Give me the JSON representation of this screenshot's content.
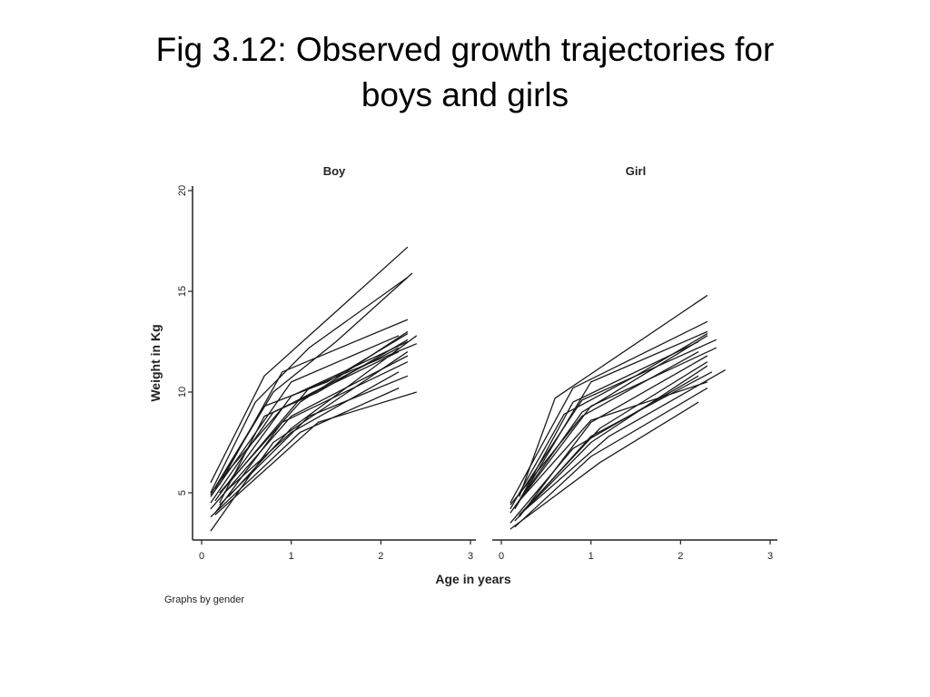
{
  "slide": {
    "title_line1": "Fig 3.12: Observed growth trajectories for",
    "title_line2": "boys and girls"
  },
  "footnote": "Graphs by gender",
  "colors": {
    "line": "#1a1a1a",
    "axis": "#222222",
    "background": "#ffffff"
  },
  "chart_data": {
    "type": "line",
    "xlabel": "Age in years",
    "ylabel": "Weight in Kg",
    "xlim": [
      0,
      3
    ],
    "ylim": [
      3,
      20
    ],
    "x_ticks": [
      0,
      1,
      2,
      3
    ],
    "y_ticks": [
      5,
      10,
      15,
      20
    ],
    "grid": false,
    "panels": [
      {
        "title": "Boy",
        "series": [
          {
            "x": [
              0.1,
              0.7,
              1.3,
              2.3
            ],
            "y": [
              5.5,
              10.8,
              13.2,
              17.2
            ]
          },
          {
            "x": [
              0.15,
              0.8,
              1.5,
              2.35
            ],
            "y": [
              5.2,
              10.0,
              12.5,
              15.9
            ]
          },
          {
            "x": [
              0.1,
              0.6,
              1.2,
              2.3
            ],
            "y": [
              5.0,
              9.5,
              12.2,
              15.7
            ]
          },
          {
            "x": [
              0.2,
              0.9,
              2.3
            ],
            "y": [
              5.4,
              11.0,
              13.6
            ]
          },
          {
            "x": [
              0.1,
              1.0,
              2.2
            ],
            "y": [
              4.8,
              10.5,
              12.8
            ]
          },
          {
            "x": [
              0.15,
              1.0,
              2.3
            ],
            "y": [
              4.6,
              9.8,
              12.5
            ]
          },
          {
            "x": [
              0.2,
              1.1,
              2.3
            ],
            "y": [
              5.0,
              9.5,
              13.0
            ]
          },
          {
            "x": [
              0.1,
              0.8,
              2.2
            ],
            "y": [
              4.5,
              9.0,
              12.0
            ]
          },
          {
            "x": [
              0.25,
              1.2,
              2.4
            ],
            "y": [
              5.2,
              10.2,
              12.4
            ]
          },
          {
            "x": [
              0.1,
              1.0,
              2.3
            ],
            "y": [
              4.2,
              8.8,
              11.8
            ]
          },
          {
            "x": [
              0.2,
              0.9,
              2.2
            ],
            "y": [
              5.6,
              9.2,
              12.2
            ]
          },
          {
            "x": [
              0.15,
              0.9,
              2.3
            ],
            "y": [
              4.0,
              8.5,
              11.5
            ]
          },
          {
            "x": [
              0.1,
              1.1,
              2.2
            ],
            "y": [
              3.8,
              8.0,
              10.2
            ]
          },
          {
            "x": [
              0.2,
              1.2,
              2.3
            ],
            "y": [
              4.4,
              8.8,
              10.8
            ]
          },
          {
            "x": [
              0.15,
              1.3,
              2.4
            ],
            "y": [
              3.9,
              8.5,
              10.0
            ]
          },
          {
            "x": [
              0.1,
              0.8,
              2.3
            ],
            "y": [
              3.1,
              7.5,
              12.0
            ]
          },
          {
            "x": [
              0.3,
              1.0,
              2.4
            ],
            "y": [
              4.8,
              8.2,
              12.8
            ]
          },
          {
            "x": [
              0.2,
              0.7,
              1.3,
              2.3
            ],
            "y": [
              4.5,
              8.8,
              10.0,
              12.6
            ]
          },
          {
            "x": [
              0.1,
              0.7,
              1.4,
              2.3
            ],
            "y": [
              4.9,
              9.3,
              10.5,
              12.9
            ]
          },
          {
            "x": [
              0.25,
              1.0,
              2.2
            ],
            "y": [
              5.0,
              8.0,
              11.0
            ]
          }
        ]
      },
      {
        "title": "Girl",
        "series": [
          {
            "x": [
              0.2,
              0.6,
              2.3
            ],
            "y": [
              4.8,
              9.7,
              14.8
            ]
          },
          {
            "x": [
              0.1,
              0.8,
              2.3
            ],
            "y": [
              4.5,
              10.2,
              13.5
            ]
          },
          {
            "x": [
              0.15,
              1.0,
              2.3
            ],
            "y": [
              4.2,
              10.5,
              13.0
            ]
          },
          {
            "x": [
              0.2,
              0.8,
              2.2
            ],
            "y": [
              4.6,
              9.5,
              12.5
            ]
          },
          {
            "x": [
              0.1,
              0.9,
              2.3
            ],
            "y": [
              4.0,
              9.0,
              12.8
            ]
          },
          {
            "x": [
              0.15,
              1.0,
              2.4
            ],
            "y": [
              4.3,
              9.3,
              12.2
            ]
          },
          {
            "x": [
              0.2,
              1.0,
              2.3
            ],
            "y": [
              3.8,
              8.5,
              11.8
            ]
          },
          {
            "x": [
              0.1,
              0.9,
              2.2
            ],
            "y": [
              4.4,
              8.8,
              12.0
            ]
          },
          {
            "x": [
              0.2,
              1.1,
              2.3
            ],
            "y": [
              3.9,
              8.2,
              11.5
            ]
          },
          {
            "x": [
              0.15,
              1.0,
              2.35
            ],
            "y": [
              3.6,
              7.8,
              11.0
            ]
          },
          {
            "x": [
              0.1,
              0.8,
              2.2
            ],
            "y": [
              3.5,
              7.2,
              10.8
            ]
          },
          {
            "x": [
              0.2,
              1.2,
              2.5
            ],
            "y": [
              3.9,
              7.8,
              11.1
            ]
          },
          {
            "x": [
              0.15,
              1.0,
              2.3
            ],
            "y": [
              3.3,
              6.8,
              10.2
            ]
          },
          {
            "x": [
              0.1,
              1.1,
              2.2
            ],
            "y": [
              3.2,
              6.5,
              9.5
            ]
          },
          {
            "x": [
              0.2,
              0.9,
              2.4
            ],
            "y": [
              4.9,
              9.6,
              12.6
            ]
          },
          {
            "x": [
              0.25,
              1.0,
              2.3
            ],
            "y": [
              4.1,
              7.5,
              11.3
            ]
          },
          {
            "x": [
              0.1,
              0.7,
              1.5,
              2.3
            ],
            "y": [
              4.2,
              8.9,
              10.8,
              12.9
            ]
          },
          {
            "x": [
              0.2,
              1.0,
              2.3
            ],
            "y": [
              4.6,
              8.6,
              10.5
            ]
          }
        ]
      }
    ]
  }
}
